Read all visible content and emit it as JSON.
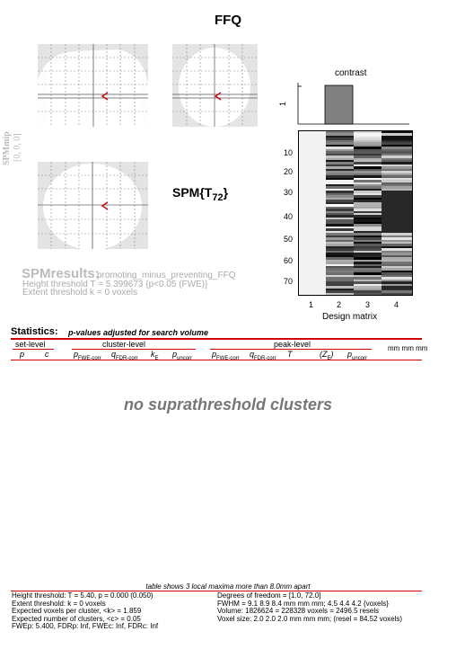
{
  "title": "FFQ",
  "mip": {
    "label": "SPMmip",
    "coords": "[0, 0, 0]"
  },
  "stat_label": "SPM{T",
  "stat_df": "72",
  "stat_close": "}",
  "results": {
    "title": "SPMresults:",
    "contrast_name": "promoting_minus_preventing_FFQ",
    "height_line": "Height threshold T = 5.399673  {p<0.05 (FWE)}",
    "extent_line": "Extent threshold k = 0 voxels"
  },
  "contrast": {
    "title": "contrast",
    "y_tick": "1"
  },
  "design": {
    "xlabel": "Design matrix",
    "row_ticks": [
      "10",
      "20",
      "30",
      "40",
      "50",
      "60",
      "70"
    ],
    "col_ticks": [
      "1",
      "2",
      "3",
      "4"
    ]
  },
  "statistics": {
    "heading": "Statistics:",
    "subheading": "p-values adjusted for search volume",
    "groups": [
      "set-level",
      "cluster-level",
      "peak-level"
    ],
    "coords_header": "mm mm mm",
    "set_cols": [
      "p",
      "c"
    ],
    "cluster_cols": [
      "p",
      "q",
      "k",
      "p"
    ],
    "cluster_subs": [
      "FWE-corr",
      "FDR-corr",
      "E",
      "uncorr"
    ],
    "peak_cols": [
      "p",
      "q",
      "T",
      "(Z",
      "p"
    ],
    "peak_subs": [
      "FWE-corr",
      "FDR-corr",
      "",
      "E",
      "uncorr"
    ],
    "peak_close": ")",
    "empty_message": "no suprathreshold clusters"
  },
  "footer": {
    "caption": "table shows 3 local maxima more than 8.0mm apart",
    "left": [
      "Height threshold: T = 5.40, p = 0.000 (0.050)",
      "Extent threshold: k = 0 voxels",
      "Expected voxels per cluster, <k> = 1.859",
      "Expected number of clusters, <c> = 0.05",
      "FWEp: 5.400, FDRp: Inf, FWEc: Inf, FDRc: Inf"
    ],
    "right": [
      "Degrees of freedom = [1.0, 72.0]",
      "FWHM = 9.1 8.9 8.4 mm mm mm; 4.5 4.4 4.2 {voxels}",
      "Volume: 1826624 = 228328 voxels = 2496.5 resels",
      "Voxel size: 2.0 2.0 2.0 mm mm mm; (resel = 84.52 voxels)"
    ]
  },
  "colors": {
    "red": "#d00000",
    "cursor": "#cc0000",
    "mip_gray": "#e4e4e4",
    "contrast_bar": "#808080"
  }
}
